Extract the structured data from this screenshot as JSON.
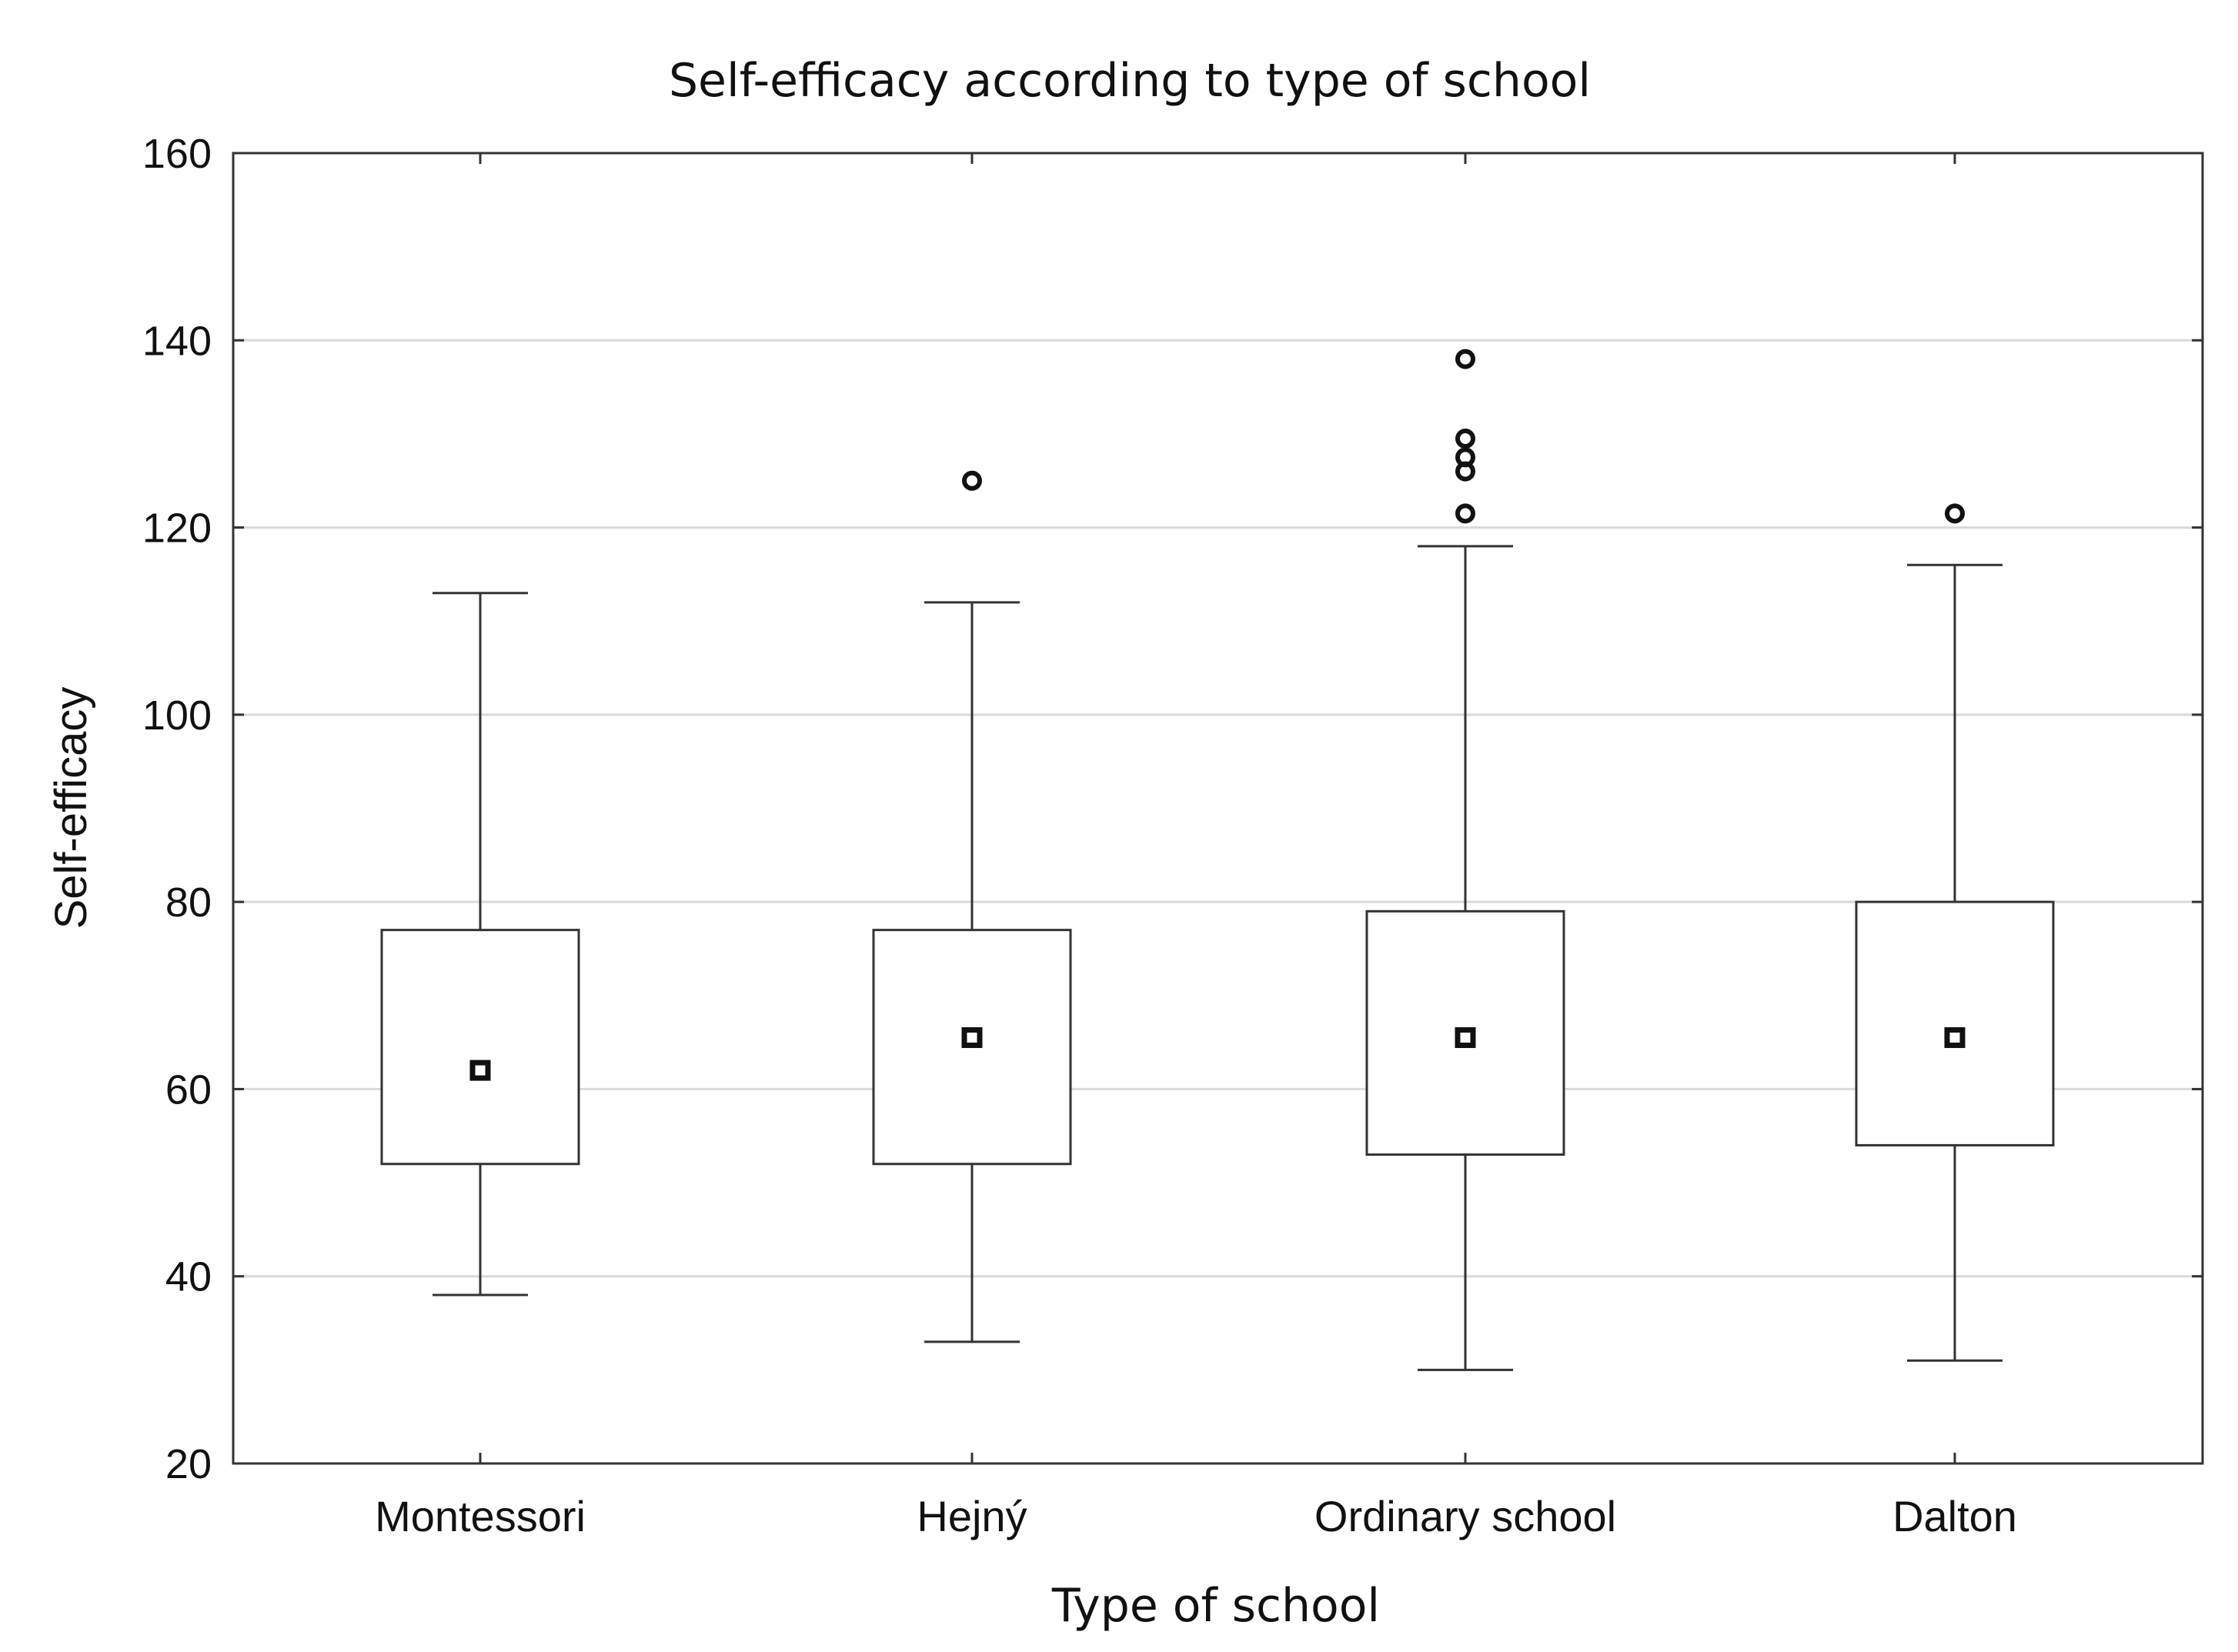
{
  "chart_data": {
    "type": "boxplot",
    "title": "Self-efficacy according to type of school",
    "xlabel": "Type of school",
    "ylabel": "Self-efficacy",
    "ylim": [
      20,
      160
    ],
    "yticks": [
      20,
      40,
      60,
      80,
      100,
      120,
      140,
      160
    ],
    "grid": true,
    "categories": [
      "Montessori",
      "Hejný",
      "Ordinary school",
      "Dalton"
    ],
    "series": [
      {
        "name": "Montessori",
        "whisker_low": 38,
        "q1": 52,
        "median": 62,
        "q3": 77,
        "whisker_high": 113,
        "outliers": []
      },
      {
        "name": "Hejný",
        "whisker_low": 33,
        "q1": 52,
        "median": 65.5,
        "q3": 77,
        "whisker_high": 112,
        "outliers": [
          125
        ]
      },
      {
        "name": "Ordinary school",
        "whisker_low": 30,
        "q1": 53,
        "median": 65.5,
        "q3": 79,
        "whisker_high": 118,
        "outliers": [
          121.5,
          126,
          127.5,
          129.5,
          138
        ]
      },
      {
        "name": "Dalton",
        "whisker_low": 31,
        "q1": 54,
        "median": 65.5,
        "q3": 80,
        "whisker_high": 116,
        "outliers": [
          121.5
        ]
      }
    ],
    "colors": {
      "axis": "#333333",
      "grid": "#d9d9d9",
      "box": "#333333",
      "marker": "#111111",
      "background": "#ffffff"
    }
  }
}
